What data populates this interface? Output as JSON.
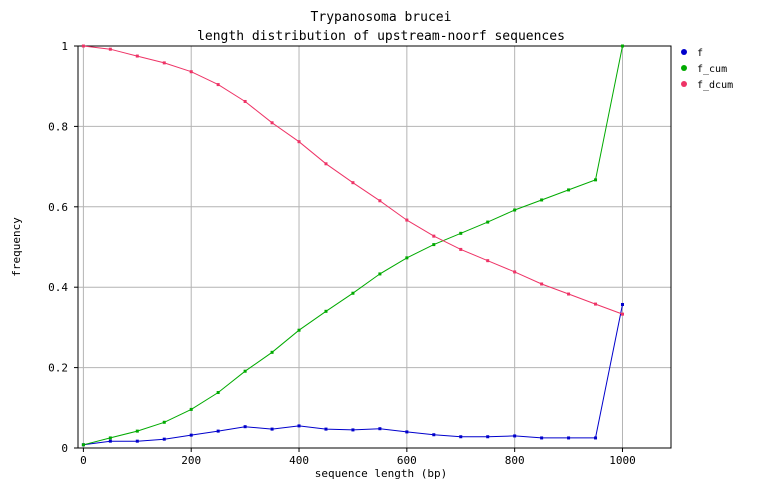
{
  "chart_data": {
    "type": "line",
    "title": "Trypanosoma brucei",
    "subtitle": "length distribution of upstream-noorf sequences",
    "xlabel": "sequence length (bp)",
    "ylabel": "frequency",
    "xlim": [
      -10,
      1090
    ],
    "ylim": [
      0,
      1
    ],
    "x_ticks": [
      0,
      200,
      400,
      600,
      800,
      1000
    ],
    "x_tick_labels": [
      "0",
      "200",
      "400",
      "600",
      "800",
      "1000"
    ],
    "y_ticks": [
      0,
      0.2,
      0.4,
      0.6,
      0.8,
      1
    ],
    "y_tick_labels": [
      "0",
      "0.2",
      "0.4",
      "0.6",
      "0.8",
      "1"
    ],
    "grid": true,
    "legend_position": "top-right",
    "x": [
      0,
      50,
      100,
      150,
      200,
      250,
      300,
      350,
      400,
      450,
      500,
      550,
      600,
      650,
      700,
      750,
      800,
      850,
      900,
      950,
      1000
    ],
    "series": [
      {
        "name": "f",
        "color": "#0000cc",
        "values": [
          0.008,
          0.017,
          0.017,
          0.022,
          0.032,
          0.042,
          0.053,
          0.047,
          0.055,
          0.047,
          0.045,
          0.048,
          0.04,
          0.033,
          0.028,
          0.028,
          0.03,
          0.025,
          0.025,
          0.025,
          0.357
        ]
      },
      {
        "name": "f_cum",
        "color": "#00aa00",
        "values": [
          0.008,
          0.025,
          0.042,
          0.064,
          0.096,
          0.138,
          0.191,
          0.238,
          0.293,
          0.34,
          0.385,
          0.433,
          0.473,
          0.506,
          0.534,
          0.562,
          0.592,
          0.617,
          0.642,
          0.667,
          1.0
        ]
      },
      {
        "name": "f_dcum",
        "color": "#ee3366",
        "values": [
          1.0,
          0.992,
          0.975,
          0.958,
          0.936,
          0.904,
          0.862,
          0.809,
          0.762,
          0.707,
          0.66,
          0.615,
          0.567,
          0.527,
          0.494,
          0.466,
          0.438,
          0.408,
          0.383,
          0.358,
          0.333
        ]
      }
    ]
  }
}
